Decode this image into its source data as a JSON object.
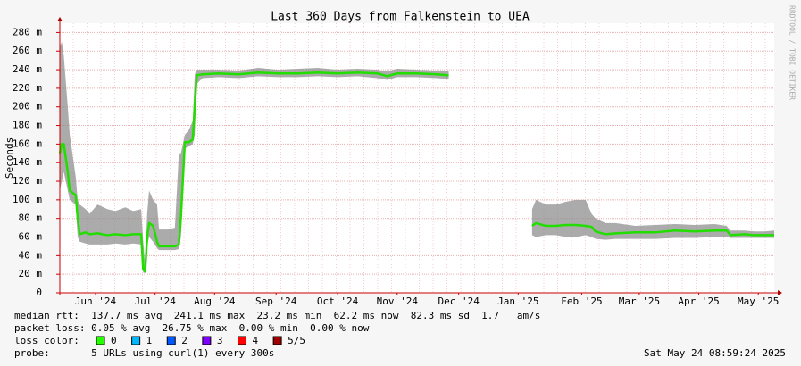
{
  "chart_data": {
    "type": "line",
    "title": "Last 360 Days from Falkenstein to UEA",
    "y_label": "Seconds",
    "side_text": "RRDTOOL / TOBI OETIKER",
    "x": [
      0,
      1,
      2,
      4,
      5,
      8,
      9,
      10,
      13,
      15,
      19,
      24,
      28,
      33,
      37,
      41,
      42,
      43,
      44,
      45,
      47,
      49,
      50,
      54,
      58,
      60,
      61,
      63,
      65,
      67,
      68,
      69,
      72,
      80,
      90,
      100,
      110,
      120,
      130,
      140,
      150,
      160,
      165,
      170,
      180,
      190,
      196,
      200,
      238,
      240,
      245,
      250,
      255,
      260,
      265,
      268,
      270,
      275,
      280,
      290,
      300,
      310,
      320,
      330,
      336,
      338,
      345,
      350,
      355,
      360
    ],
    "values": [
      150,
      160,
      160,
      130,
      110,
      105,
      80,
      63,
      65,
      63,
      64,
      62,
      63,
      62,
      63,
      63,
      25,
      23,
      60,
      75,
      72,
      55,
      50,
      50,
      50,
      52,
      80,
      162,
      162,
      165,
      200,
      234,
      235,
      236,
      235,
      237,
      236,
      236,
      237,
      236,
      237,
      236,
      233,
      236,
      236,
      235,
      234,
      null,
      72,
      75,
      72,
      72,
      73,
      73,
      72,
      71,
      66,
      63,
      64,
      65,
      65,
      67,
      66,
      67,
      67,
      62,
      63,
      62,
      62,
      62
    ],
    "low": [
      110,
      120,
      130,
      110,
      100,
      95,
      60,
      55,
      53,
      52,
      52,
      52,
      53,
      52,
      53,
      52,
      22,
      21,
      50,
      60,
      55,
      48,
      46,
      46,
      46,
      47,
      60,
      155,
      158,
      160,
      170,
      225,
      231,
      232,
      231,
      233,
      232,
      232,
      233,
      232,
      233,
      231,
      229,
      232,
      232,
      231,
      230,
      null,
      62,
      60,
      62,
      62,
      60,
      60,
      62,
      60,
      58,
      57,
      58,
      58,
      58,
      59,
      59,
      60,
      60,
      59,
      59,
      59,
      59,
      59
    ],
    "high": [
      265,
      270,
      255,
      200,
      170,
      125,
      100,
      95,
      90,
      85,
      95,
      90,
      88,
      92,
      88,
      90,
      55,
      30,
      85,
      110,
      100,
      95,
      68,
      68,
      70,
      150,
      150,
      170,
      175,
      185,
      235,
      240,
      240,
      240,
      239,
      242,
      240,
      241,
      242,
      240,
      241,
      240,
      238,
      241,
      240,
      239,
      238,
      null,
      90,
      100,
      95,
      95,
      98,
      100,
      100,
      85,
      80,
      75,
      75,
      72,
      73,
      74,
      73,
      74,
      72,
      67,
      67,
      66,
      66,
      67
    ],
    "color": "#22dd00",
    "smoke_color": "#8f8f8f",
    "grid_color": "#e8b0b0",
    "xlim": [
      0,
      360
    ],
    "ylim": [
      0,
      290
    ],
    "xticks": [
      {
        "value": 18,
        "label": "Jun '24"
      },
      {
        "value": 48,
        "label": "Jul '24"
      },
      {
        "value": 78,
        "label": "Aug '24"
      },
      {
        "value": 109,
        "label": "Sep '24"
      },
      {
        "value": 140,
        "label": "Oct '24"
      },
      {
        "value": 170,
        "label": "Nov '24"
      },
      {
        "value": 201,
        "label": "Dec '24"
      },
      {
        "value": 231,
        "label": "Jan '25"
      },
      {
        "value": 263,
        "label": "Feb '25"
      },
      {
        "value": 292,
        "label": "Mar '25"
      },
      {
        "value": 322,
        "label": "Apr '25"
      },
      {
        "value": 352,
        "label": "May '25"
      }
    ],
    "yticks": [
      {
        "value": 0,
        "label": "0"
      },
      {
        "value": 20,
        "label": "20 m"
      },
      {
        "value": 40,
        "label": "40 m"
      },
      {
        "value": 60,
        "label": "60 m"
      },
      {
        "value": 80,
        "label": "80 m"
      },
      {
        "value": 100,
        "label": "100 m"
      },
      {
        "value": 120,
        "label": "120 m"
      },
      {
        "value": 140,
        "label": "140 m"
      },
      {
        "value": 160,
        "label": "160 m"
      },
      {
        "value": 180,
        "label": "180 m"
      },
      {
        "value": 200,
        "label": "200 m"
      },
      {
        "value": 220,
        "label": "220 m"
      },
      {
        "value": 240,
        "label": "240 m"
      },
      {
        "value": 260,
        "label": "260 m"
      },
      {
        "value": 280,
        "label": "280 m"
      }
    ],
    "grid": true,
    "stats": [
      "median rtt:  137.7 ms avg  241.1 ms max  23.2 ms min  62.2 ms now  82.3 ms sd  1.7   am/s",
      "packet loss: 0.05 % avg  26.75 % max  0.00 % min  0.00 % now"
    ],
    "legend_title": "loss color:",
    "legend": [
      {
        "label": "0",
        "color": "#26ff00"
      },
      {
        "label": "1",
        "color": "#00b8ff"
      },
      {
        "label": "2",
        "color": "#0059ff"
      },
      {
        "label": "3",
        "color": "#7e00ff"
      },
      {
        "label": "4",
        "color": "#ff0000"
      },
      {
        "label": "5/5",
        "color": "#a10000"
      }
    ],
    "probe": "probe:       5 URLs using curl(1) every 300s",
    "timestamp": "Sat May 24 08:59:24 2025"
  }
}
